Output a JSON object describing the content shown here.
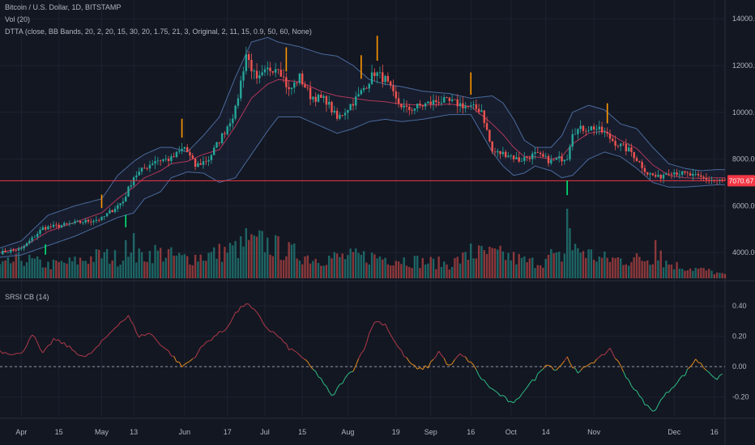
{
  "legend": {
    "title": "Bitcoin / U.S. Dollar, 1D, BITSTAMP",
    "vol": "Vol (20)",
    "dtta": "DTTA (close, BB Bands, 20, 2, 20, 15, 30, 20, 1.75, 21, 3, Original, 2, 11, 15, 0.9, 50, 60, None)",
    "srsi": "SRSI CB (14)"
  },
  "colors": {
    "background": "#131722",
    "up": "#26a69a",
    "down": "#ef5350",
    "band": "#4a6a9c",
    "basis": "#b2365a",
    "price_line": "#f23645",
    "signal_orange": "#ff9800",
    "signal_green": "#00e676",
    "srsi_high": "#b03a48",
    "srsi_mid": "#e08a1e",
    "srsi_low": "#2ebd85"
  },
  "chart_data": [
    {
      "type": "candlestick",
      "panel": "price",
      "y_ticks": [
        "14000.00",
        "12000.00",
        "10000.00",
        "8000.00",
        "6000.00",
        "4000.00"
      ],
      "y_tick_values": [
        14000,
        12000,
        10000,
        8000,
        6000,
        4000
      ],
      "price_axis": {
        "top_value": 14800,
        "bottom_value": 2900
      },
      "current_price_label": "7070.67",
      "current_price": 7070.67,
      "x_ticks": [
        "Apr",
        "15",
        "May",
        "13",
        "Jun",
        "17",
        "Jul",
        "15",
        "Aug",
        "19",
        "Sep",
        "16",
        "Oct",
        "14",
        "Nov",
        "Dec",
        "16"
      ],
      "x_tick_days": [
        0,
        14,
        30,
        42,
        61,
        77,
        91,
        105,
        122,
        140,
        153,
        168,
        183,
        196,
        214,
        244,
        259
      ],
      "day_range": [
        -8,
        263
      ],
      "anchors": {
        "close": [
          [
            -8,
            4000
          ],
          [
            0,
            4150
          ],
          [
            8,
            5050
          ],
          [
            14,
            5150
          ],
          [
            22,
            5300
          ],
          [
            30,
            5450
          ],
          [
            38,
            6200
          ],
          [
            42,
            7250
          ],
          [
            50,
            7950
          ],
          [
            56,
            8000
          ],
          [
            61,
            8500
          ],
          [
            65,
            7700
          ],
          [
            70,
            8000
          ],
          [
            76,
            9200
          ],
          [
            80,
            10100
          ],
          [
            84,
            12500
          ],
          [
            88,
            11300
          ],
          [
            92,
            11800
          ],
          [
            96,
            12000
          ],
          [
            100,
            10900
          ],
          [
            104,
            11500
          ],
          [
            108,
            10700
          ],
          [
            114,
            10500
          ],
          [
            118,
            9700
          ],
          [
            122,
            10200
          ],
          [
            126,
            10700
          ],
          [
            132,
            11700
          ],
          [
            136,
            11400
          ],
          [
            140,
            10500
          ],
          [
            144,
            10100
          ],
          [
            150,
            10300
          ],
          [
            156,
            10500
          ],
          [
            162,
            10400
          ],
          [
            168,
            10200
          ],
          [
            172,
            10100
          ],
          [
            176,
            8300
          ],
          [
            182,
            8200
          ],
          [
            186,
            7950
          ],
          [
            192,
            8200
          ],
          [
            198,
            7900
          ],
          [
            204,
            8100
          ],
          [
            206,
            9200
          ],
          [
            210,
            9300
          ],
          [
            214,
            9350
          ],
          [
            218,
            9100
          ],
          [
            222,
            8700
          ],
          [
            228,
            8300
          ],
          [
            234,
            7400
          ],
          [
            238,
            7200
          ],
          [
            242,
            7500
          ],
          [
            248,
            7350
          ],
          [
            252,
            7250
          ],
          [
            256,
            7150
          ],
          [
            260,
            7070
          ]
        ],
        "upper": [
          [
            -8,
            4200
          ],
          [
            0,
            4500
          ],
          [
            10,
            5600
          ],
          [
            20,
            6000
          ],
          [
            30,
            6300
          ],
          [
            36,
            7300
          ],
          [
            42,
            7900
          ],
          [
            46,
            8200
          ],
          [
            52,
            8500
          ],
          [
            56,
            8500
          ],
          [
            62,
            8300
          ],
          [
            68,
            9000
          ],
          [
            74,
            9800
          ],
          [
            80,
            11500
          ],
          [
            86,
            13000
          ],
          [
            92,
            13200
          ],
          [
            96,
            13000
          ],
          [
            104,
            12800
          ],
          [
            112,
            12500
          ],
          [
            118,
            12400
          ],
          [
            124,
            12000
          ],
          [
            130,
            11400
          ],
          [
            136,
            11200
          ],
          [
            142,
            11100
          ],
          [
            150,
            10900
          ],
          [
            160,
            10800
          ],
          [
            168,
            10600
          ],
          [
            176,
            10700
          ],
          [
            180,
            10400
          ],
          [
            184,
            9700
          ],
          [
            188,
            8800
          ],
          [
            192,
            8500
          ],
          [
            198,
            8500
          ],
          [
            202,
            9000
          ],
          [
            206,
            10000
          ],
          [
            212,
            10300
          ],
          [
            218,
            10100
          ],
          [
            224,
            9500
          ],
          [
            230,
            9300
          ],
          [
            236,
            8500
          ],
          [
            242,
            7800
          ],
          [
            248,
            7600
          ],
          [
            254,
            7500
          ],
          [
            260,
            7550
          ]
        ],
        "lower": [
          [
            -8,
            3800
          ],
          [
            0,
            3900
          ],
          [
            10,
            4300
          ],
          [
            20,
            4700
          ],
          [
            30,
            5200
          ],
          [
            36,
            5500
          ],
          [
            42,
            5700
          ],
          [
            46,
            6300
          ],
          [
            52,
            6600
          ],
          [
            56,
            7200
          ],
          [
            62,
            7450
          ],
          [
            68,
            7400
          ],
          [
            74,
            7000
          ],
          [
            80,
            7200
          ],
          [
            86,
            8200
          ],
          [
            92,
            9200
          ],
          [
            96,
            9800
          ],
          [
            104,
            9800
          ],
          [
            112,
            9400
          ],
          [
            118,
            9100
          ],
          [
            124,
            9300
          ],
          [
            130,
            9600
          ],
          [
            136,
            9700
          ],
          [
            142,
            9600
          ],
          [
            150,
            9700
          ],
          [
            160,
            9900
          ],
          [
            168,
            9900
          ],
          [
            176,
            8300
          ],
          [
            180,
            7700
          ],
          [
            184,
            7300
          ],
          [
            188,
            7400
          ],
          [
            192,
            7700
          ],
          [
            198,
            7500
          ],
          [
            202,
            7200
          ],
          [
            206,
            7300
          ],
          [
            212,
            8000
          ],
          [
            218,
            8300
          ],
          [
            224,
            8100
          ],
          [
            230,
            7600
          ],
          [
            236,
            7000
          ],
          [
            242,
            6800
          ],
          [
            248,
            6800
          ],
          [
            254,
            6850
          ],
          [
            260,
            6900
          ]
        ],
        "basis": [
          [
            -8,
            4000
          ],
          [
            0,
            4200
          ],
          [
            10,
            4900
          ],
          [
            20,
            5300
          ],
          [
            30,
            5700
          ],
          [
            36,
            6300
          ],
          [
            42,
            6800
          ],
          [
            46,
            7200
          ],
          [
            52,
            7500
          ],
          [
            56,
            7800
          ],
          [
            62,
            7900
          ],
          [
            68,
            8200
          ],
          [
            74,
            8400
          ],
          [
            80,
            9400
          ],
          [
            86,
            10600
          ],
          [
            92,
            11200
          ],
          [
            96,
            11400
          ],
          [
            104,
            11300
          ],
          [
            112,
            10900
          ],
          [
            118,
            10700
          ],
          [
            124,
            10600
          ],
          [
            130,
            10500
          ],
          [
            136,
            10450
          ],
          [
            142,
            10350
          ],
          [
            150,
            10300
          ],
          [
            160,
            10350
          ],
          [
            168,
            10250
          ],
          [
            176,
            9500
          ],
          [
            180,
            9050
          ],
          [
            184,
            8500
          ],
          [
            188,
            8100
          ],
          [
            192,
            8100
          ],
          [
            198,
            8000
          ],
          [
            202,
            8100
          ],
          [
            206,
            8650
          ],
          [
            212,
            9100
          ],
          [
            218,
            9200
          ],
          [
            224,
            8800
          ],
          [
            230,
            8450
          ],
          [
            236,
            7750
          ],
          [
            242,
            7300
          ],
          [
            248,
            7200
          ],
          [
            254,
            7170
          ],
          [
            260,
            7200
          ]
        ],
        "volume": [
          [
            -8,
            0.18
          ],
          [
            0,
            0.3
          ],
          [
            10,
            0.2
          ],
          [
            20,
            0.25
          ],
          [
            30,
            0.35
          ],
          [
            40,
            0.28
          ],
          [
            50,
            0.4
          ],
          [
            60,
            0.3
          ],
          [
            70,
            0.35
          ],
          [
            80,
            0.45
          ],
          [
            90,
            0.55
          ],
          [
            100,
            0.4
          ],
          [
            110,
            0.3
          ],
          [
            120,
            0.32
          ],
          [
            130,
            0.33
          ],
          [
            140,
            0.3
          ],
          [
            150,
            0.25
          ],
          [
            160,
            0.22
          ],
          [
            170,
            0.38
          ],
          [
            180,
            0.35
          ],
          [
            190,
            0.24
          ],
          [
            200,
            0.3
          ],
          [
            208,
            0.45
          ],
          [
            216,
            0.3
          ],
          [
            226,
            0.28
          ],
          [
            236,
            0.3
          ],
          [
            246,
            0.18
          ],
          [
            256,
            0.12
          ],
          [
            262,
            0.06
          ]
        ]
      },
      "volume_spikes": [
        [
          39,
          0.55
        ],
        [
          42,
          0.65
        ],
        [
          55,
          0.42
        ],
        [
          84,
          0.72
        ],
        [
          85,
          0.55
        ],
        [
          168,
          0.5
        ],
        [
          186,
          0.35
        ],
        [
          198,
          0.42
        ],
        [
          204,
          1.0
        ],
        [
          205,
          0.72
        ],
        [
          237,
          0.55
        ],
        [
          239,
          0.4
        ]
      ],
      "signals": [
        {
          "day": 30,
          "type": "sell"
        },
        {
          "day": 60,
          "type": "sell"
        },
        {
          "day": 99,
          "type": "sell"
        },
        {
          "day": 127,
          "type": "sell"
        },
        {
          "day": 133,
          "type": "sell"
        },
        {
          "day": 168,
          "type": "sell"
        },
        {
          "day": 219,
          "type": "sell"
        },
        {
          "day": 9,
          "type": "buy"
        },
        {
          "day": 39,
          "type": "buy"
        },
        {
          "day": 204,
          "type": "buy"
        }
      ]
    },
    {
      "type": "line",
      "panel": "srsi",
      "name": "SRSI CB (14)",
      "y_ticks": [
        "0.40",
        "0.20",
        "0.00",
        "-0.20"
      ],
      "y_tick_values": [
        0.4,
        0.2,
        0.0,
        -0.2
      ],
      "ylim": [
        -0.33,
        0.55
      ],
      "zero_line": "dashed",
      "anchors": [
        [
          -8,
          0.1
        ],
        [
          0,
          0.08
        ],
        [
          4,
          0.22
        ],
        [
          8,
          0.08
        ],
        [
          12,
          0.18
        ],
        [
          16,
          0.15
        ],
        [
          20,
          0.1
        ],
        [
          24,
          0.06
        ],
        [
          28,
          0.12
        ],
        [
          32,
          0.2
        ],
        [
          36,
          0.28
        ],
        [
          40,
          0.33
        ],
        [
          44,
          0.2
        ],
        [
          48,
          0.22
        ],
        [
          52,
          0.15
        ],
        [
          56,
          0.08
        ],
        [
          60,
          0.0
        ],
        [
          64,
          0.05
        ],
        [
          68,
          0.14
        ],
        [
          72,
          0.2
        ],
        [
          76,
          0.24
        ],
        [
          80,
          0.35
        ],
        [
          84,
          0.42
        ],
        [
          88,
          0.35
        ],
        [
          92,
          0.25
        ],
        [
          96,
          0.2
        ],
        [
          100,
          0.12
        ],
        [
          104,
          0.08
        ],
        [
          108,
          0.0
        ],
        [
          112,
          -0.08
        ],
        [
          116,
          -0.2
        ],
        [
          120,
          -0.1
        ],
        [
          124,
          -0.02
        ],
        [
          128,
          0.12
        ],
        [
          132,
          0.3
        ],
        [
          136,
          0.28
        ],
        [
          140,
          0.15
        ],
        [
          144,
          0.05
        ],
        [
          148,
          -0.02
        ],
        [
          152,
          0.0
        ],
        [
          156,
          0.1
        ],
        [
          160,
          0.0
        ],
        [
          164,
          0.08
        ],
        [
          168,
          0.03
        ],
        [
          172,
          -0.08
        ],
        [
          176,
          -0.15
        ],
        [
          180,
          -0.2
        ],
        [
          184,
          -0.25
        ],
        [
          188,
          -0.15
        ],
        [
          192,
          -0.08
        ],
        [
          196,
          0.02
        ],
        [
          200,
          -0.02
        ],
        [
          204,
          0.06
        ],
        [
          208,
          -0.05
        ],
        [
          212,
          0.02
        ],
        [
          216,
          0.05
        ],
        [
          220,
          0.12
        ],
        [
          224,
          0.0
        ],
        [
          228,
          -0.12
        ],
        [
          232,
          -0.22
        ],
        [
          236,
          -0.3
        ],
        [
          240,
          -0.2
        ],
        [
          244,
          -0.12
        ],
        [
          248,
          -0.05
        ],
        [
          252,
          0.05
        ],
        [
          256,
          -0.02
        ],
        [
          260,
          -0.08
        ],
        [
          262,
          -0.06
        ]
      ]
    }
  ]
}
